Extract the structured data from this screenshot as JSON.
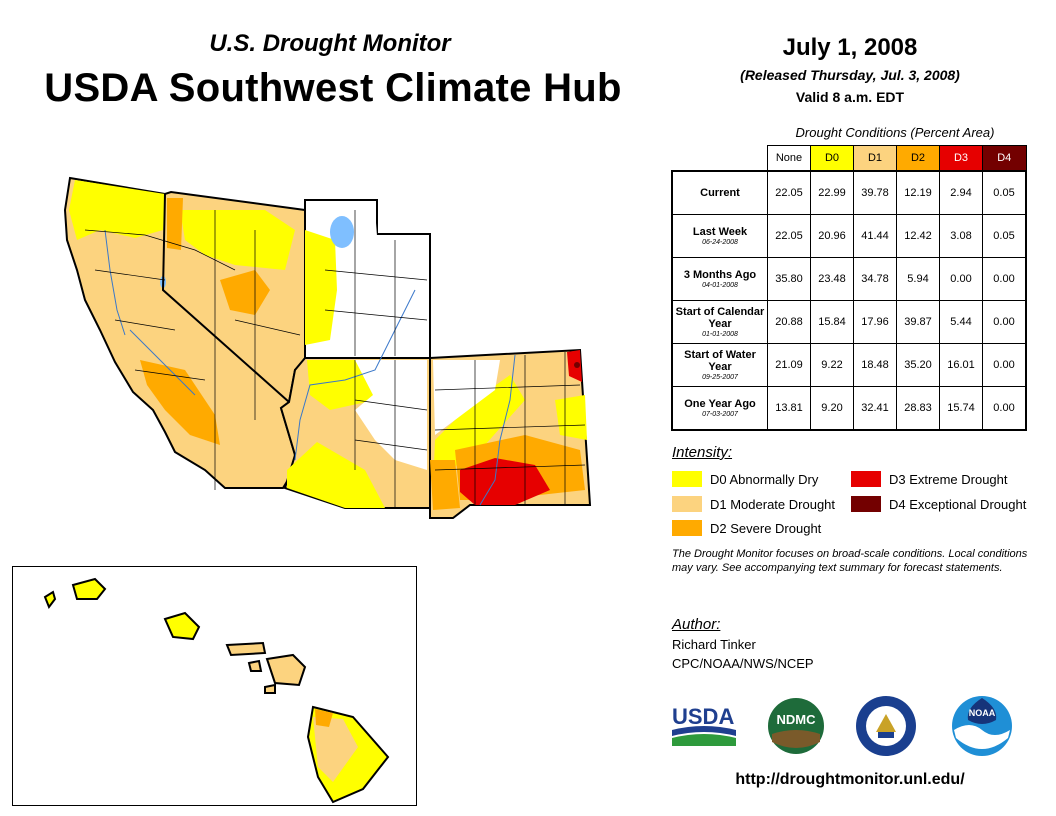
{
  "header": {
    "subtitle": "U.S. Drought Monitor",
    "title": "USDA Southwest Climate Hub",
    "date": "July 1, 2008",
    "released": "(Released Thursday, Jul. 3, 2008)",
    "valid": "Valid 8 a.m. EDT"
  },
  "table": {
    "caption": "Drought Conditions (Percent Area)",
    "columns": [
      "None",
      "D0",
      "D1",
      "D2",
      "D3",
      "D4"
    ],
    "column_colors": [
      "#ffffff",
      "#ffff00",
      "#fcd37f",
      "#ffaa00",
      "#e60000",
      "#730000"
    ],
    "rows": [
      {
        "label": "Current",
        "date": "",
        "values": [
          "22.05",
          "22.99",
          "39.78",
          "12.19",
          "2.94",
          "0.05"
        ]
      },
      {
        "label": "Last Week",
        "date": "06-24-2008",
        "values": [
          "22.05",
          "20.96",
          "41.44",
          "12.42",
          "3.08",
          "0.05"
        ]
      },
      {
        "label": "3 Months Ago",
        "date": "04-01-2008",
        "values": [
          "35.80",
          "23.48",
          "34.78",
          "5.94",
          "0.00",
          "0.00"
        ]
      },
      {
        "label": "Start of Calendar Year",
        "date": "01-01-2008",
        "values": [
          "20.88",
          "15.84",
          "17.96",
          "39.87",
          "5.44",
          "0.00"
        ]
      },
      {
        "label": "Start of Water Year",
        "date": "09-25-2007",
        "values": [
          "21.09",
          "9.22",
          "18.48",
          "35.20",
          "16.01",
          "0.00"
        ]
      },
      {
        "label": "One Year Ago",
        "date": "07-03-2007",
        "values": [
          "13.81",
          "9.20",
          "32.41",
          "28.83",
          "15.74",
          "0.00"
        ]
      }
    ]
  },
  "legend": {
    "title": "Intensity:",
    "items": [
      {
        "label": "D0 Abnormally Dry",
        "color": "#ffff00"
      },
      {
        "label": "D1 Moderate Drought",
        "color": "#fcd37f"
      },
      {
        "label": "D2 Severe Drought",
        "color": "#ffaa00"
      },
      {
        "label": "D3 Extreme Drought",
        "color": "#e60000"
      },
      {
        "label": "D4 Exceptional Drought",
        "color": "#730000"
      }
    ]
  },
  "note": "The Drought Monitor focuses on broad-scale conditions. Local conditions may vary. See accompanying text summary for forecast statements.",
  "author": {
    "title": "Author:",
    "name": "Richard Tinker",
    "org": "CPC/NOAA/NWS/NCEP"
  },
  "logos": {
    "usda": "USDA",
    "ndmc": "NDMC",
    "noaa": "NOAA",
    "commerce": "commerce-seal-icon"
  },
  "url": "http://droughtmonitor.unl.edu/"
}
